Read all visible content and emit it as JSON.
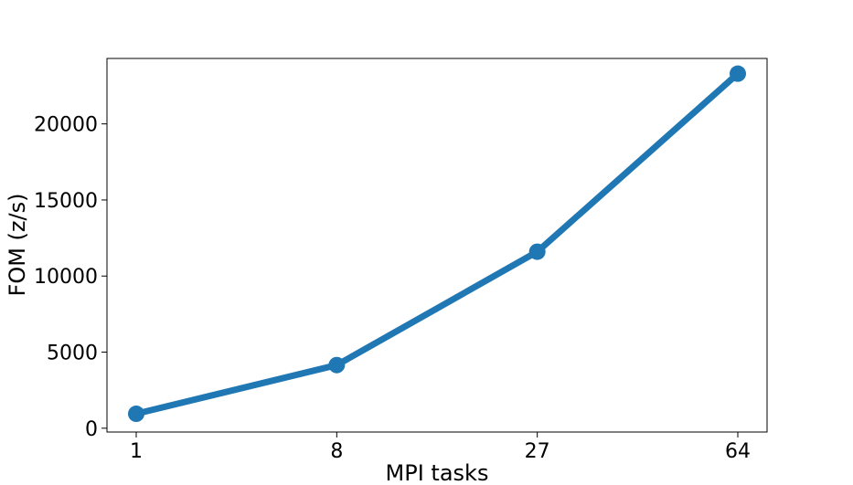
{
  "chart_data": {
    "type": "line",
    "title": "",
    "xlabel": "MPI tasks",
    "ylabel": "FOM (z/s)",
    "x_categories": [
      "1",
      "8",
      "27",
      "64"
    ],
    "y_ticks": [
      0,
      5000,
      10000,
      15000,
      20000
    ],
    "ylim": [
      -250,
      24300
    ],
    "grid": false,
    "series": [
      {
        "values": [
          950,
          4150,
          11600,
          23300
        ],
        "color": "#1f77b4"
      }
    ]
  }
}
